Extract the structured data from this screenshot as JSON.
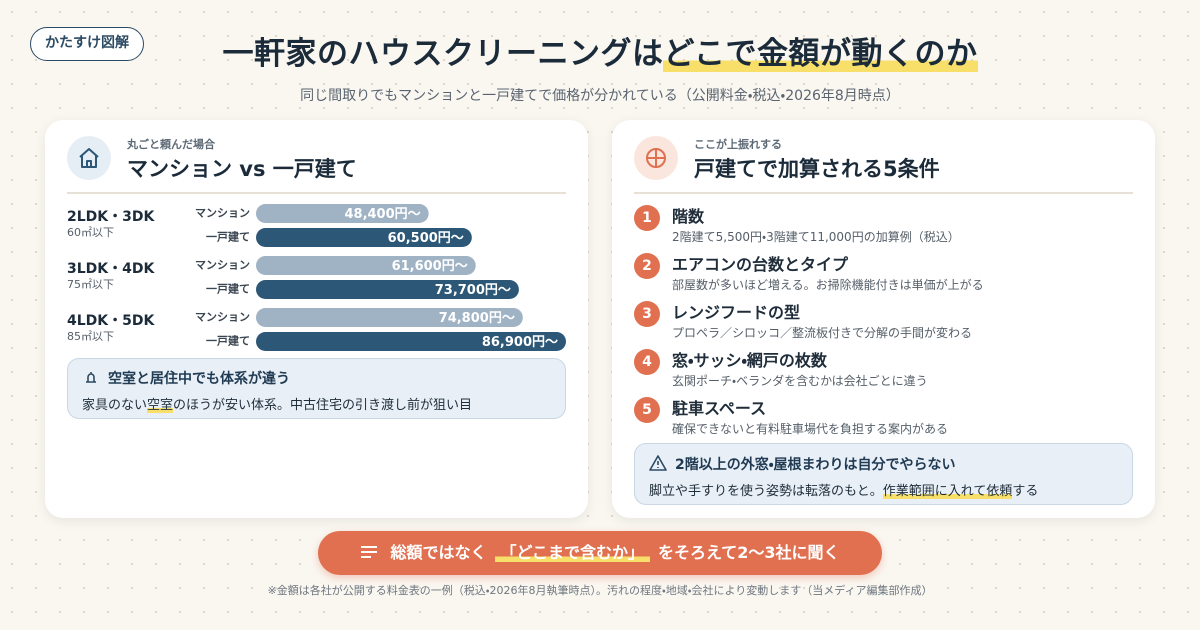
{
  "header": {
    "badge": "かたすけ図解",
    "title_plain": "一軒家のハウスクリーニングは",
    "title_highlight": "どこで金額が動くのか",
    "subtitle": "同じ間取りでもマンションと一戸建てで価格が分かれている（公開料金・税込・2026年8月時点）"
  },
  "chart_data": {
    "type": "bar",
    "orientation": "horizontal",
    "subtitle": "丸ごと頼んだ場合",
    "title": "マンション vs 一戸建て",
    "categories": [
      "2LDK・3DK",
      "3LDK・4DK",
      "4LDK・5DK"
    ],
    "category_notes": [
      "60㎡以下",
      "75㎡以下",
      "85㎡以下"
    ],
    "series": [
      {
        "name": "マンション",
        "color": "#9fb3c5",
        "values": [
          48400,
          61600,
          74800
        ],
        "value_labels": [
          "48,400円〜",
          "61,600円〜",
          "74,800円〜"
        ]
      },
      {
        "name": "一戸建て",
        "color": "#2c5777",
        "values": [
          60500,
          73700,
          86900
        ],
        "value_labels": [
          "60,500円〜",
          "73,700円〜",
          "86,900円〜"
        ]
      }
    ]
  },
  "left_note": {
    "title": "空室と居住中でも体系が違う",
    "text_before": "家具のない",
    "text_highlight": "空室",
    "text_after": "のほうが安い体系。中古住宅の引き渡し前が狙い目"
  },
  "right_panel": {
    "kicker": "ここが上振れする",
    "title": "戸建てで加算される5条件",
    "items": [
      {
        "number": "1",
        "title": "階数",
        "text": "2階建て5,500円・3階建て11,000円の加算例（税込）"
      },
      {
        "number": "2",
        "title": "エアコンの台数とタイプ",
        "text": "部屋数が多いほど増える。お掃除機能付きは単価が上がる"
      },
      {
        "number": "3",
        "title": "レンジフードの型",
        "text": "プロペラ／シロッコ／整流板付きで分解の手間が変わる"
      },
      {
        "number": "4",
        "title": "窓・サッシ・網戸の枚数",
        "text": "玄関ポーチ・ベランダを含むかは会社ごとに違う"
      },
      {
        "number": "5",
        "title": "駐車スペース",
        "text": "確保できないと有料駐車場代を負担する案内がある"
      }
    ],
    "warning": {
      "title": "2階以上の外窓・屋根まわりは自分でやらない",
      "text_before": "脚立や手すりを使う姿勢は転落のもと。",
      "text_highlight": "作業範囲に入れて依頼",
      "text_after": "する"
    }
  },
  "cta": {
    "text_before": "総額ではなく",
    "text_highlight": "「どこまで含むか」",
    "text_after": "をそろえて2〜3社に聞く"
  },
  "footnote": "※金額は各社が公開する料金表の一例（税込・2026年8月執筆時点）。汚れの程度・地域・会社により変動します（当メディア編集部作成）"
}
